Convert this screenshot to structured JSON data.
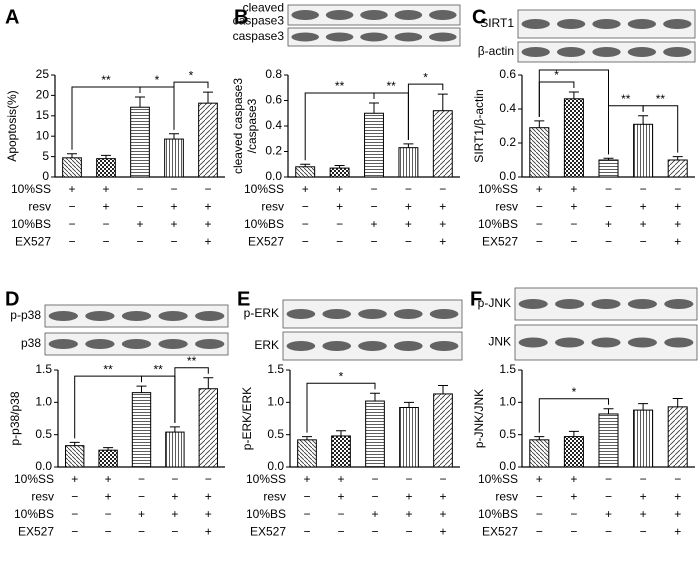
{
  "chart_data": [
    {
      "type": "bar",
      "panel": "A",
      "ylabel": [
        "Apoptosis(%)"
      ],
      "categories": [
        null,
        null,
        null,
        null,
        null
      ],
      "values": [
        4.7,
        4.5,
        17.1,
        9.3,
        18.1
      ],
      "errors": [
        1.0,
        0.8,
        2.5,
        1.3,
        2.7
      ],
      "ylim": [
        0,
        25
      ],
      "yticks": [
        0,
        5,
        10,
        15,
        20,
        25
      ],
      "blots": [],
      "annotations": [
        {
          "label": "**",
          "from": 0,
          "to": 2
        },
        {
          "label": "*",
          "from": 2,
          "to": 3
        },
        {
          "label": "*",
          "from": 3,
          "to": 4
        }
      ],
      "treatments": [
        {
          "name": "10%SS",
          "signs": [
            "+",
            "+",
            "−",
            "−",
            "−"
          ]
        },
        {
          "name": "resv",
          "signs": [
            "−",
            "+",
            "−",
            "+",
            "+"
          ]
        },
        {
          "name": "10%BS",
          "signs": [
            "−",
            "−",
            "+",
            "+",
            "+"
          ]
        },
        {
          "name": "EX527",
          "signs": [
            "−",
            "−",
            "−",
            "−",
            "+"
          ]
        }
      ]
    },
    {
      "type": "bar",
      "panel": "B",
      "ylabel": [
        "cleaved caspase3",
        "/caspase3"
      ],
      "categories": [
        null,
        null,
        null,
        null,
        null
      ],
      "values": [
        0.08,
        0.07,
        0.5,
        0.23,
        0.52
      ],
      "errors": [
        0.02,
        0.02,
        0.08,
        0.03,
        0.13
      ],
      "ylim": [
        0,
        0.8
      ],
      "yticks": [
        {
          "value": 0,
          "label": "0.0"
        },
        0.2,
        0.4,
        0.6,
        0.8
      ],
      "blots": [
        [
          "cleaved",
          "caspase3"
        ],
        [
          "caspase3"
        ]
      ],
      "annotations": [
        {
          "label": "**",
          "from": 0,
          "to": 2
        },
        {
          "label": "**",
          "from": 2,
          "to": 3
        },
        {
          "label": "*",
          "from": 3,
          "to": 4
        }
      ],
      "treatments": [
        {
          "name": "10%SS",
          "signs": [
            "+",
            "+",
            "−",
            "−",
            "−"
          ]
        },
        {
          "name": "resv",
          "signs": [
            "−",
            "+",
            "−",
            "+",
            "+"
          ]
        },
        {
          "name": "10%BS",
          "signs": [
            "−",
            "−",
            "+",
            "+",
            "+"
          ]
        },
        {
          "name": "EX527",
          "signs": [
            "−",
            "−",
            "−",
            "−",
            "+"
          ]
        }
      ]
    },
    {
      "type": "bar",
      "panel": "C",
      "ylabel": [
        "SIRT1/β-actin"
      ],
      "categories": [
        null,
        null,
        null,
        null,
        null
      ],
      "values": [
        0.29,
        0.46,
        0.1,
        0.31,
        0.1
      ],
      "errors": [
        0.04,
        0.04,
        0.01,
        0.05,
        0.02
      ],
      "ylim": [
        0,
        0.6
      ],
      "yticks": [
        {
          "value": 0,
          "label": "0.0"
        },
        0.2,
        0.4,
        0.6
      ],
      "blots": [
        [
          "SIRT1"
        ],
        [
          "β-actin"
        ]
      ],
      "annotations": [
        {
          "label": "*",
          "from": 0,
          "to": 1
        },
        {
          "label": "**",
          "from": 0,
          "to": 2
        },
        {
          "label": "**",
          "from": 2,
          "to": 3
        },
        {
          "label": "**",
          "from": 3,
          "to": 4
        }
      ],
      "treatments": [
        {
          "name": "10%SS",
          "signs": [
            "+",
            "+",
            "−",
            "−",
            "−"
          ]
        },
        {
          "name": "resv",
          "signs": [
            "−",
            "+",
            "−",
            "+",
            "+"
          ]
        },
        {
          "name": "10%BS",
          "signs": [
            "−",
            "−",
            "+",
            "+",
            "+"
          ]
        },
        {
          "name": "EX527",
          "signs": [
            "−",
            "−",
            "−",
            "−",
            "+"
          ]
        }
      ]
    },
    {
      "type": "bar",
      "panel": "D",
      "ylabel": [
        "p-p38/p38"
      ],
      "categories": [
        null,
        null,
        null,
        null,
        null
      ],
      "values": [
        0.33,
        0.26,
        1.15,
        0.54,
        1.21
      ],
      "errors": [
        0.05,
        0.04,
        0.1,
        0.08,
        0.17
      ],
      "ylim": [
        0,
        1.5
      ],
      "yticks": [
        {
          "value": 0,
          "label": "0.0"
        },
        0.5,
        {
          "value": 1,
          "label": "1.0"
        },
        1.5
      ],
      "blots": [
        [
          "p-p38"
        ],
        [
          "p38"
        ]
      ],
      "annotations": [
        {
          "label": "**",
          "from": 0,
          "to": 2
        },
        {
          "label": "**",
          "from": 2,
          "to": 3
        },
        {
          "label": "**",
          "from": 3,
          "to": 4
        }
      ],
      "treatments": [
        {
          "name": "10%SS",
          "signs": [
            "+",
            "+",
            "−",
            "−",
            "−"
          ]
        },
        {
          "name": "resv",
          "signs": [
            "−",
            "+",
            "−",
            "+",
            "+"
          ]
        },
        {
          "name": "10%BS",
          "signs": [
            "−",
            "−",
            "+",
            "+",
            "+"
          ]
        },
        {
          "name": "EX527",
          "signs": [
            "−",
            "−",
            "−",
            "−",
            "+"
          ]
        }
      ]
    },
    {
      "type": "bar",
      "panel": "E",
      "ylabel": [
        "p-ERK/ERK"
      ],
      "categories": [
        null,
        null,
        null,
        null,
        null
      ],
      "values": [
        0.42,
        0.48,
        1.02,
        0.92,
        1.13
      ],
      "errors": [
        0.05,
        0.08,
        0.12,
        0.08,
        0.13
      ],
      "ylim": [
        0,
        1.5
      ],
      "yticks": [
        {
          "value": 0,
          "label": "0.0"
        },
        0.5,
        {
          "value": 1,
          "label": "1.0"
        },
        1.5
      ],
      "blots": [
        [
          "p-ERK"
        ],
        [
          "ERK"
        ]
      ],
      "annotations": [
        {
          "label": "*",
          "from": 0,
          "to": 2
        }
      ],
      "treatments": [
        {
          "name": "10%SS",
          "signs": [
            "+",
            "+",
            "−",
            "−",
            "−"
          ]
        },
        {
          "name": "resv",
          "signs": [
            "−",
            "+",
            "−",
            "+",
            "+"
          ]
        },
        {
          "name": "10%BS",
          "signs": [
            "−",
            "−",
            "+",
            "+",
            "+"
          ]
        },
        {
          "name": "EX527",
          "signs": [
            "−",
            "−",
            "−",
            "−",
            "+"
          ]
        }
      ]
    },
    {
      "type": "bar",
      "panel": "F",
      "ylabel": [
        "p-JNK/JNK"
      ],
      "categories": [
        null,
        null,
        null,
        null,
        null
      ],
      "values": [
        0.42,
        0.47,
        0.82,
        0.88,
        0.93
      ],
      "errors": [
        0.05,
        0.08,
        0.08,
        0.1,
        0.13
      ],
      "ylim": [
        0,
        1.5
      ],
      "yticks": [
        {
          "value": 0,
          "label": "0.0"
        },
        0.5,
        {
          "value": 1,
          "label": "1.0"
        },
        1.5
      ],
      "blots": [
        [
          "p-JNK"
        ],
        [
          "JNK"
        ]
      ],
      "annotations": [
        {
          "label": "*",
          "from": 0,
          "to": 2
        }
      ],
      "treatments": [
        {
          "name": "10%SS",
          "signs": [
            "+",
            "+",
            "−",
            "−",
            "−"
          ]
        },
        {
          "name": "resv",
          "signs": [
            "−",
            "+",
            "−",
            "+",
            "+"
          ]
        },
        {
          "name": "10%BS",
          "signs": [
            "−",
            "−",
            "+",
            "+",
            "+"
          ]
        },
        {
          "name": "EX527",
          "signs": [
            "−",
            "−",
            "−",
            "−",
            "+"
          ]
        }
      ]
    }
  ]
}
